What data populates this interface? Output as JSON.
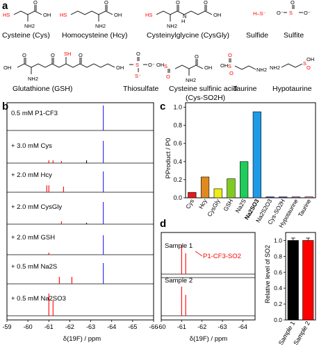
{
  "panel_labels": {
    "a": "a",
    "b": "b",
    "c": "c",
    "d": "d"
  },
  "panel_a": {
    "compounds": [
      {
        "name": "Cysteine (Cys)"
      },
      {
        "name": "Homocysteine (Hcy)"
      },
      {
        "name": "Cysteinylglycine (CysGly)"
      },
      {
        "name": "Sulfide"
      },
      {
        "name": "Sulfite"
      },
      {
        "name": "Glutathione (GSH)"
      },
      {
        "name": "Thiosulfate"
      },
      {
        "name": "Cysteine sulfinic acid",
        "name2": "(Cys-SO2H)"
      },
      {
        "name": "Taurine"
      },
      {
        "name": "Hypotaurine"
      }
    ],
    "atom_labels": {
      "HS": "HS",
      "SH": "SH",
      "NH2": "NH2",
      "OH": "OH",
      "O": "O",
      "H": "H",
      "N": "N",
      "S": "S",
      "Sm": "S⁻",
      "Om": "O⁻",
      "HSm": "H–S⁻"
    }
  },
  "panel_b": {
    "rows": [
      {
        "label": "0.5 mM P1-CF3"
      },
      {
        "label": "+ 3.0 mM Cys"
      },
      {
        "label": "+ 2.0 mM Hcy"
      },
      {
        "label": "+ 2.0 mM CysGly"
      },
      {
        "label": "+ 2.0 mM GSH"
      },
      {
        "label": "+ 0.5 mM Na2S"
      },
      {
        "label": "+ 0.5 mM Na2SO3"
      }
    ],
    "xticks": [
      "-59",
      "-60",
      "-61",
      "-62",
      "-63",
      "-64",
      "-65",
      "-66"
    ],
    "xlabel": "δ(19F) / ppm"
  },
  "chart_data": [
    {
      "type": "bar",
      "categories": [
        "Cys",
        "Hcy",
        "CysGly",
        "GSH",
        "Na2S",
        "Na2SO3",
        "Na2S2O3",
        "Cys-SO2H",
        "Hypotaurine",
        "Taurine"
      ],
      "values": [
        0.06,
        0.23,
        0.1,
        0.21,
        0.4,
        0.95,
        0.01,
        0.01,
        0.01,
        0.01
      ],
      "colors": [
        "#e41a1c",
        "#e08a1e",
        "#ecec1c",
        "#7fcc1e",
        "#21cc5a",
        "#1e9be6",
        "#3232c8",
        "#6434c0",
        "#b44cc8",
        "#e678c0"
      ],
      "ylabel": "PProduct / P0",
      "yticks": [
        "0.0",
        "0.2",
        "0.4",
        "0.6",
        "0.8",
        "1.0"
      ],
      "ylim": [
        0,
        1.05
      ]
    },
    {
      "type": "bar",
      "categories": [
        "Sample 1",
        "Sample 2"
      ],
      "values": [
        1.0,
        1.0
      ],
      "errors": [
        0.03,
        0.03
      ],
      "colors": [
        "#000000",
        "#ff0000"
      ],
      "ylabel": "Relative level of SO2",
      "yticks": [
        "0.0",
        "0.2",
        "0.4",
        "0.6",
        "0.8",
        "1.0"
      ],
      "ylim": [
        0,
        1.1
      ]
    }
  ],
  "panel_d": {
    "samples": [
      {
        "label": "Sample 1"
      },
      {
        "label": "Sample 2"
      }
    ],
    "annotation": "P1-CF3-SO2",
    "xticks": [
      "-60",
      "-61",
      "-62",
      "-63",
      "-64"
    ],
    "xlabel": "δ(19F) / ppm"
  }
}
